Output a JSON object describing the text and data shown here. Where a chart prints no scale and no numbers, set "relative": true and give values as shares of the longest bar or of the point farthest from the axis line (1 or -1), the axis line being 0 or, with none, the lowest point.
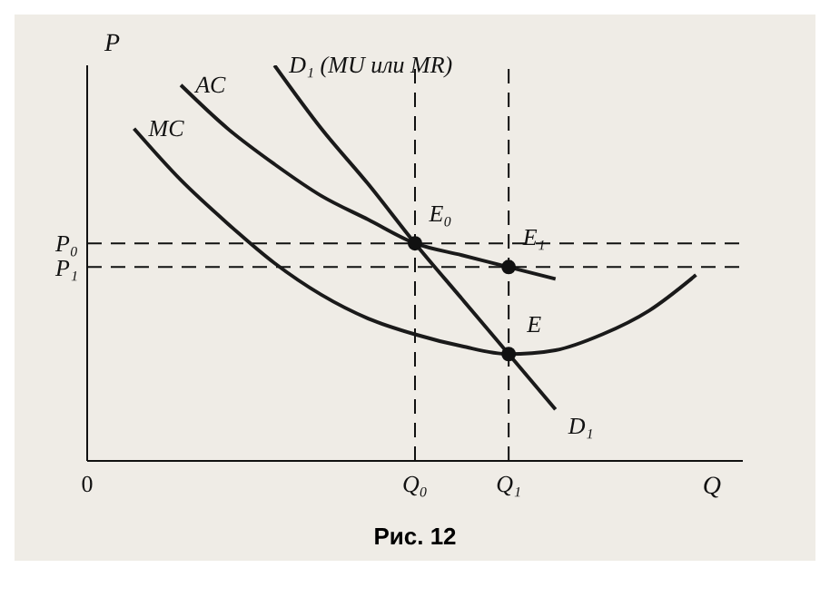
{
  "chart_data": {
    "type": "line",
    "relative": true,
    "xlabel": "Q",
    "ylabel": "P",
    "marker": "none",
    "legend": false,
    "grid": false,
    "categories": [
      null,
      null,
      null,
      null,
      null,
      null,
      null,
      "Q₀",
      null,
      "Q₁",
      null,
      null,
      null,
      null,
      null
    ],
    "series": [
      {
        "name": "AC",
        "color": "#1a1a1a",
        "values": [
          null,
          null,
          0.95,
          0.84,
          0.75,
          0.67,
          0.61,
          0.55,
          0.52,
          0.49,
          0.46,
          null,
          null,
          null,
          null
        ]
      },
      {
        "name": "MC",
        "color": "#1a1a1a",
        "values": [
          null,
          0.84,
          0.71,
          0.6,
          0.5,
          0.42,
          0.36,
          0.32,
          0.29,
          0.27,
          0.28,
          0.32,
          0.38,
          0.47,
          null
        ]
      },
      {
        "name": "D₁ (MU или MR)",
        "color": "#1a1a1a",
        "values": [
          null,
          null,
          null,
          null,
          1,
          0.84,
          0.7,
          0.55,
          0.41,
          0.27,
          0.13,
          null,
          null,
          null,
          null
        ]
      }
    ],
    "ref_lines": [
      {
        "axis": "y",
        "value": 0.55,
        "label": "P₀",
        "line_style": "dashed"
      },
      {
        "axis": "y",
        "value": 0.49,
        "label": "P₁",
        "line_style": "dashed"
      },
      {
        "axis": "x",
        "value": "Q₀",
        "label": null,
        "line_style": "dashed"
      },
      {
        "axis": "x",
        "value": "Q₁",
        "label": null,
        "line_style": "dashed"
      }
    ],
    "annotations": [
      {
        "text": "E₀",
        "x": "Q₀",
        "y": 0.55
      },
      {
        "text": "E₁",
        "x": "Q₁",
        "y": 0.49
      },
      {
        "text": "E",
        "x": "Q₁",
        "y": 0.27
      },
      "0",
      "Рис. 12",
      "D₁"
    ]
  }
}
